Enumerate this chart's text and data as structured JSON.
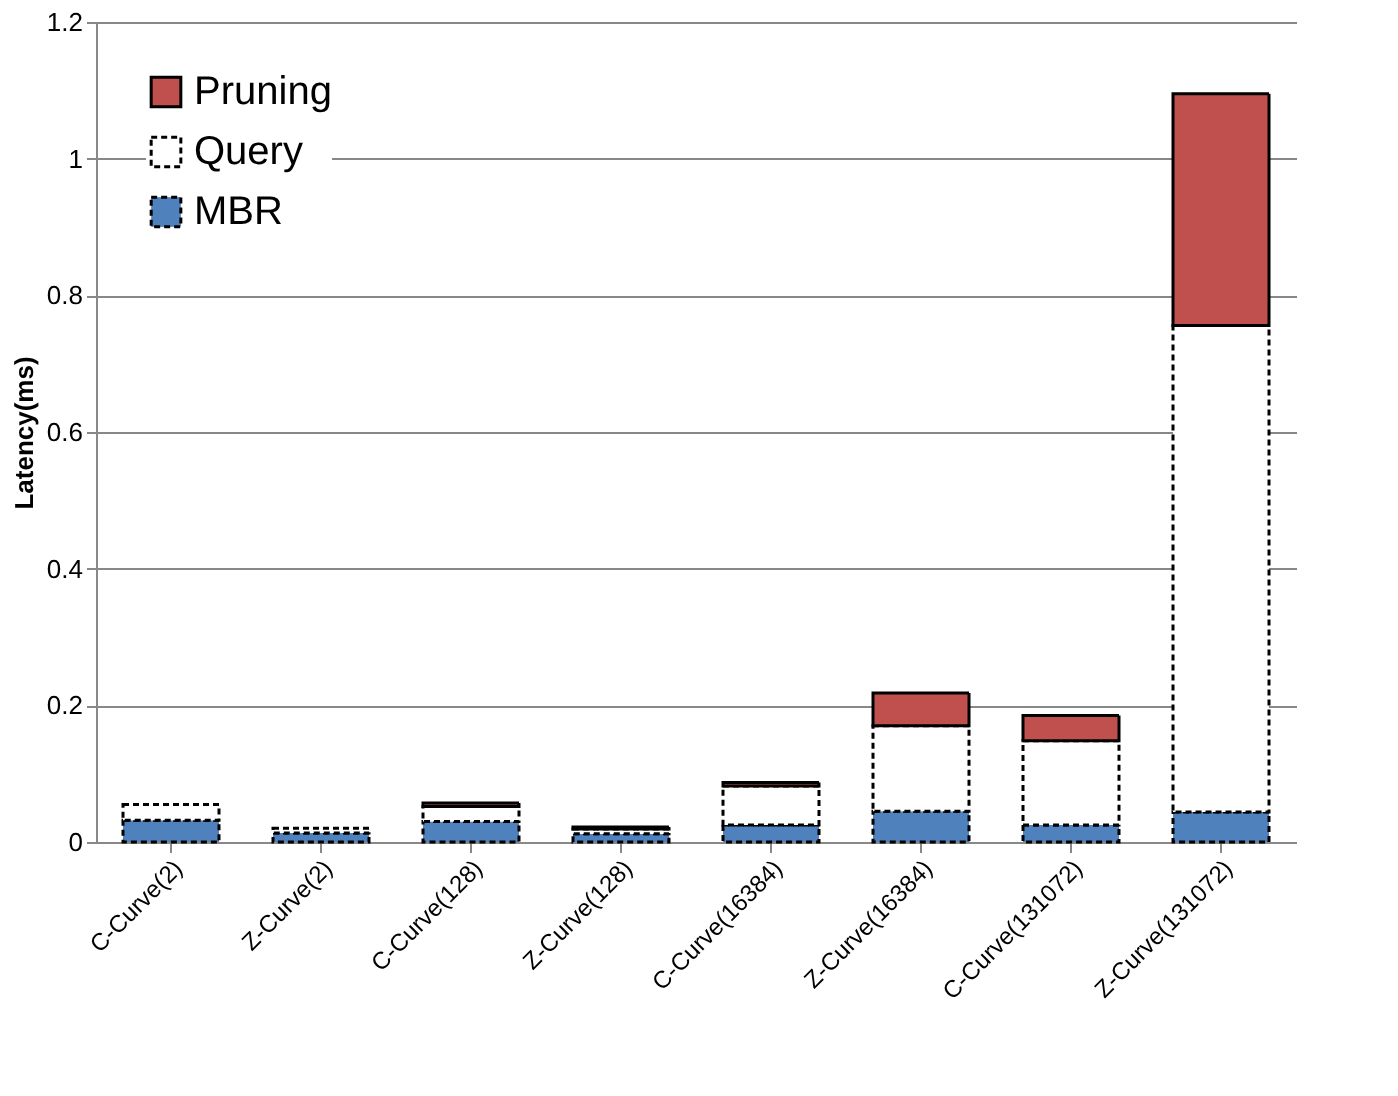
{
  "chart_data": {
    "type": "bar",
    "stacked": true,
    "ylabel": "Latency(ms)",
    "categories": [
      "C-Curve(2)",
      "Z-Curve(2)",
      "C-Curve(128)",
      "Z-Curve(128)",
      "C-Curve(16384)",
      "Z-Curve(16384)",
      "C-Curve(131072)",
      "Z-Curve(131072)"
    ],
    "series": [
      {
        "name": "MBR",
        "color": "#4f81bd",
        "line_style": "dashed",
        "values": [
          0.032,
          0.013,
          0.03,
          0.012,
          0.025,
          0.045,
          0.025,
          0.044
        ]
      },
      {
        "name": "Query",
        "color": "#ffffff",
        "line_style": "dashed",
        "values": [
          0.023,
          0.007,
          0.022,
          0.007,
          0.057,
          0.125,
          0.123,
          0.712
        ]
      },
      {
        "name": "Pruning",
        "color": "#c0504d",
        "line_style": "solid",
        "values": [
          null,
          null,
          0.005,
          0.003,
          0.005,
          0.048,
          0.037,
          0.339
        ]
      }
    ],
    "ylim": [
      0,
      1.2
    ],
    "yticks": [
      0,
      0.2,
      0.4,
      0.6,
      0.8,
      1,
      1.2
    ],
    "grid": "y",
    "legend": "top left"
  }
}
